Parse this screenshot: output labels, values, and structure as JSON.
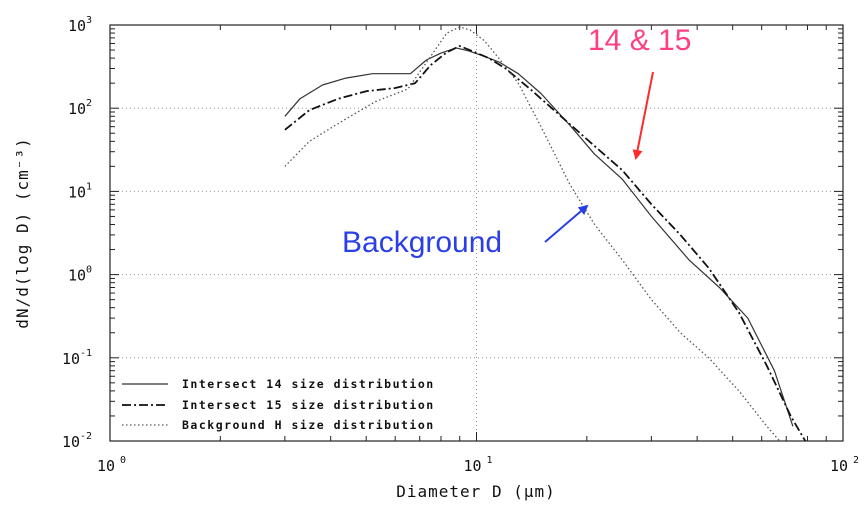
{
  "chart_data": {
    "type": "line",
    "title": "",
    "xlabel": "Diameter D (μm)",
    "ylabel": "dN/d(log D) (cm⁻³)",
    "x_scale": "log",
    "y_scale": "log",
    "xlim": [
      1,
      100
    ],
    "ylim": [
      0.01,
      1000
    ],
    "grid": true,
    "legend_position": "bottom-left",
    "x_ticks": [
      {
        "base": "10",
        "exp": "0",
        "value": 1
      },
      {
        "base": "10",
        "exp": "1",
        "value": 10
      },
      {
        "base": "10",
        "exp": "2",
        "value": 100
      }
    ],
    "y_ticks": [
      {
        "base": "10",
        "exp": "3",
        "value": 1000
      },
      {
        "base": "10",
        "exp": "2",
        "value": 100
      },
      {
        "base": "10",
        "exp": "1",
        "value": 10
      },
      {
        "base": "10",
        "exp": "0",
        "value": 1
      },
      {
        "base": "10",
        "exp": "-1",
        "value": 0.1
      },
      {
        "base": "10",
        "exp": "-2",
        "value": 0.01
      }
    ],
    "series": [
      {
        "name": "Intersect 14 size distribution",
        "style": "solid",
        "color": "#333333",
        "x": [
          3.0,
          3.3,
          3.8,
          4.4,
          5.2,
          6.0,
          6.6,
          7.3,
          8.0,
          8.8,
          9.5,
          10.5,
          11.5,
          13.0,
          15.0,
          18.0,
          21.0,
          25.0,
          30.0,
          38.0,
          46.0,
          55.0,
          65.0,
          73.0
        ],
        "y": [
          80,
          130,
          190,
          230,
          260,
          260,
          260,
          380,
          460,
          530,
          490,
          420,
          360,
          260,
          150,
          62,
          28,
          14,
          5,
          1.5,
          0.7,
          0.3,
          0.07,
          0.015
        ]
      },
      {
        "name": "Intersect 15 size distribution",
        "style": "dashdot",
        "color": "#111111",
        "x": [
          3.0,
          3.5,
          4.2,
          5.0,
          6.0,
          6.8,
          7.5,
          8.3,
          9.0,
          9.8,
          10.8,
          12.0,
          14.0,
          17.0,
          21.0,
          25.0,
          30.0,
          36.0,
          43.0,
          52.0,
          62.0,
          72.0,
          80.0
        ],
        "y": [
          55,
          95,
          130,
          160,
          175,
          200,
          330,
          470,
          560,
          480,
          400,
          300,
          170,
          80,
          35,
          18,
          7,
          3,
          1.2,
          0.35,
          0.08,
          0.02,
          0.009
        ]
      },
      {
        "name": "Background H size distribution",
        "style": "dotted",
        "color": "#555555",
        "x": [
          3.0,
          3.5,
          4.3,
          5.3,
          6.5,
          7.5,
          8.3,
          9.0,
          9.6,
          10.5,
          11.5,
          13.0,
          15.0,
          18.0,
          21.0,
          25.0,
          30.0,
          36.0,
          43.0,
          52.0,
          62.0,
          72.0
        ],
        "y": [
          20,
          40,
          70,
          120,
          170,
          420,
          800,
          950,
          870,
          650,
          400,
          200,
          60,
          12,
          4,
          1.5,
          0.5,
          0.2,
          0.1,
          0.04,
          0.015,
          0.007
        ]
      }
    ],
    "annotations": [
      {
        "text": "Background",
        "color": "#2a3fe6",
        "arrow_color": "#2a3fe6"
      },
      {
        "text": "14 & 15",
        "color": "#ff3f7f",
        "arrow_color": "#ff2a2a"
      }
    ]
  }
}
